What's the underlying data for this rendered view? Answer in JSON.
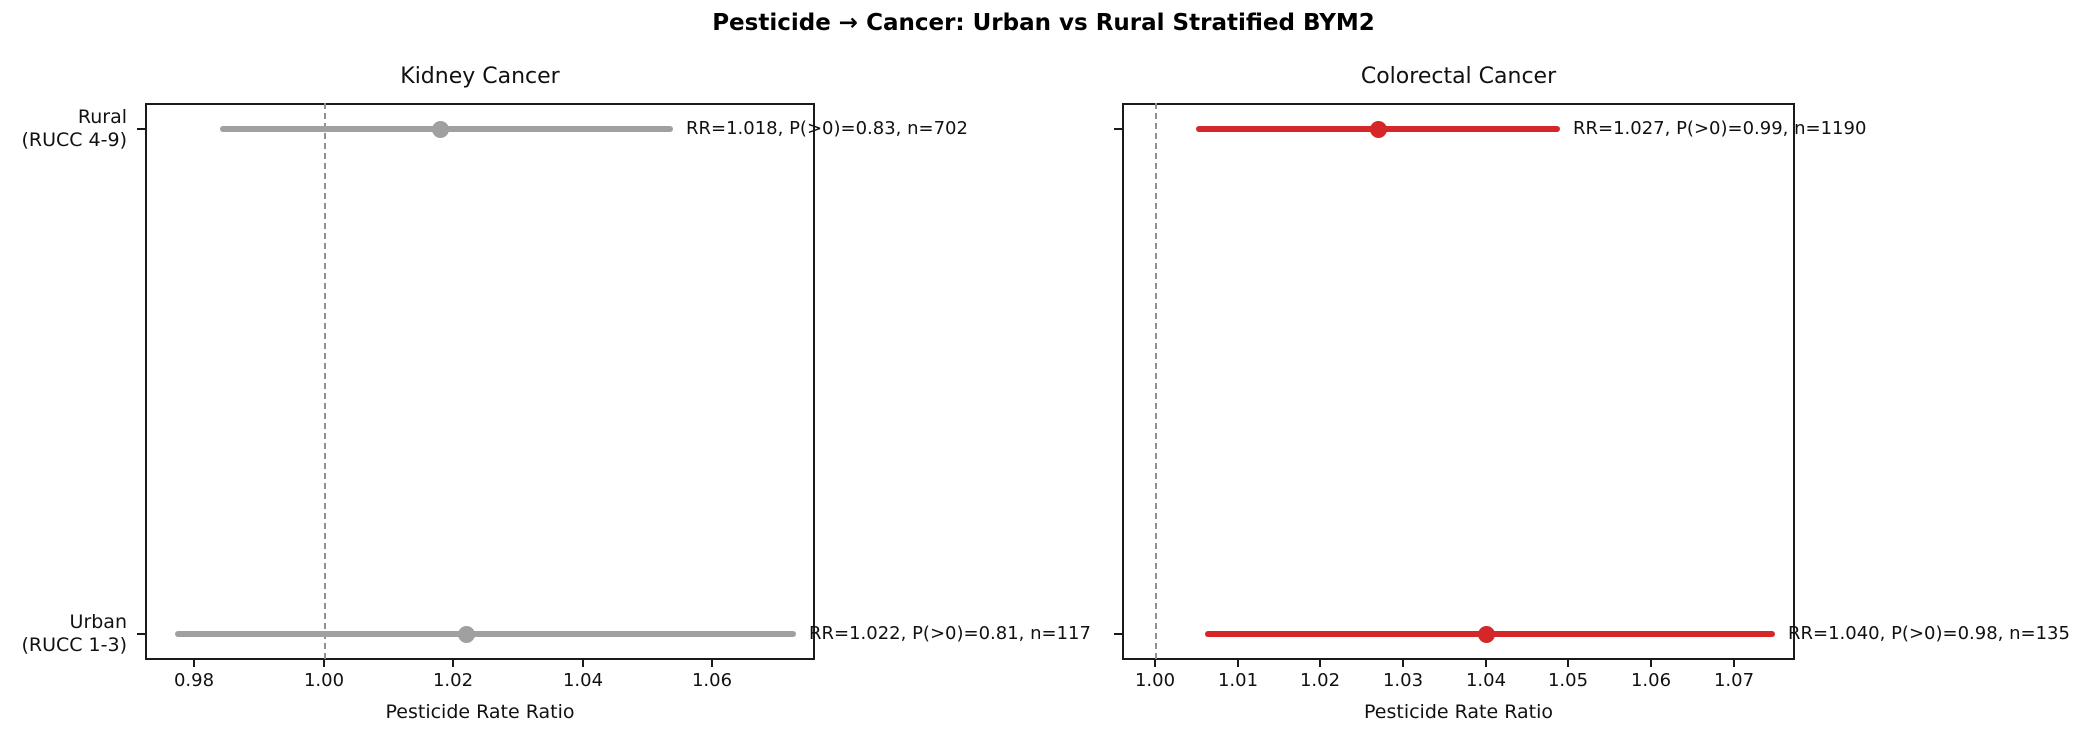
{
  "figure": {
    "title": "Pesticide → Cancer: Urban vs Rural Stratified BYM2"
  },
  "style": {
    "background": "#ffffff",
    "spine_color": "#1a1a1a",
    "text_color": "#111111",
    "reference_line_color": "#909090",
    "gray_series": "#a0a0a0",
    "red_series": "#d62728"
  },
  "chart_data": [
    {
      "type": "scatter",
      "variant": "forest-plot-dot-ci",
      "title": "Kidney Cancer",
      "xlabel": "Pesticide Rate Ratio",
      "xlim": [
        0.9724,
        1.0759
      ],
      "xticks": [
        0.98,
        1.0,
        1.02,
        1.04,
        1.06
      ],
      "reference_line_x": 1.0,
      "series_color": "#a0a0a0",
      "grid": false,
      "legend": false,
      "show_y_tick_labels": true,
      "rows": [
        {
          "group": "Rural",
          "group_detail": "(RUCC 4-9)",
          "rr": 1.018,
          "ci_low": 0.984,
          "ci_high": 1.054,
          "p_gt_0": 0.83,
          "n": 702,
          "annotation": "RR=1.018, P(>0)=0.83, n=702"
        },
        {
          "group": "Urban",
          "group_detail": "(RUCC 1-3)",
          "rr": 1.022,
          "ci_low": 0.977,
          "ci_high": 1.073,
          "p_gt_0": 0.81,
          "n": 117,
          "annotation": "RR=1.022, P(>0)=0.81, n=117"
        }
      ]
    },
    {
      "type": "scatter",
      "variant": "forest-plot-dot-ci",
      "title": "Colorectal Cancer",
      "xlabel": "Pesticide Rate Ratio",
      "xlim": [
        0.996,
        1.0774
      ],
      "xticks": [
        1.0,
        1.01,
        1.02,
        1.03,
        1.04,
        1.05,
        1.06,
        1.07
      ],
      "reference_line_x": 1.0,
      "series_color": "#d62728",
      "grid": false,
      "legend": false,
      "show_y_tick_labels": false,
      "rows": [
        {
          "group": "Rural",
          "group_detail": "(RUCC 4-9)",
          "rr": 1.027,
          "ci_low": 1.005,
          "ci_high": 1.049,
          "p_gt_0": 0.99,
          "n": 1190,
          "annotation": "RR=1.027, P(>0)=0.99, n=1190"
        },
        {
          "group": "Urban",
          "group_detail": "(RUCC 1-3)",
          "rr": 1.04,
          "ci_low": 1.006,
          "ci_high": 1.075,
          "p_gt_0": 0.98,
          "n": 135,
          "annotation": "RR=1.040, P(>0)=0.98, n=135"
        }
      ]
    }
  ]
}
